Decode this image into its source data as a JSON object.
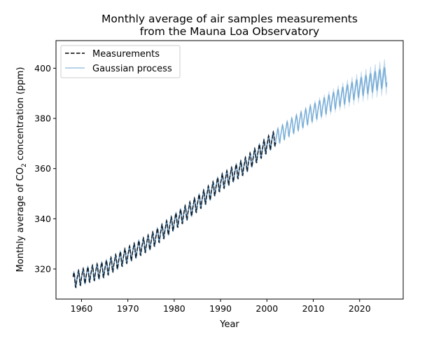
{
  "chart_data": {
    "type": "line",
    "title_line1": "Monthly average of air samples measurements",
    "title_line2": "from the Mauna Loa Observatory",
    "xlabel": "Year",
    "ylabel_prefix": "Monthly average of CO",
    "ylabel_sub": "2",
    "ylabel_suffix": " concentration (ppm)",
    "xlim": [
      1954.5,
      2029.4
    ],
    "ylim": [
      308,
      411
    ],
    "xticks": [
      "1960",
      "1970",
      "1980",
      "1990",
      "2000",
      "2010",
      "2020"
    ],
    "yticks": [
      "320",
      "340",
      "360",
      "380",
      "400"
    ],
    "grid": false,
    "legend": {
      "placement": "upper-left",
      "entries": [
        "Measurements",
        "Gaussian process"
      ]
    },
    "colors": {
      "measurements": "#000000",
      "gp_mean": "#77acd6",
      "gp_band": "#a9cbe6"
    },
    "series": [
      {
        "name": "Measurements",
        "style": "dashed",
        "x_range": [
          1958.2,
          2001.9
        ],
        "annual_mean_years": [
          1958,
          1960,
          1965,
          1970,
          1975,
          1980,
          1985,
          1990,
          1995,
          2000,
          2002
        ],
        "annual_mean_ppm": [
          315.3,
          316.9,
          320.0,
          325.7,
          331.1,
          338.7,
          346.1,
          354.4,
          360.8,
          369.5,
          372.5
        ],
        "seasonal_cycle_ppm": [
          0.0,
          0.7,
          1.4,
          2.5,
          3.0,
          2.4,
          0.8,
          -1.3,
          -3.0,
          -3.2,
          -2.0,
          -0.8
        ]
      },
      {
        "name": "Gaussian process",
        "style": "solid",
        "x_range": [
          1958.2,
          2025.9
        ],
        "mean_years": [
          1958,
          1960,
          1965,
          1970,
          1975,
          1980,
          1985,
          1990,
          1995,
          2000,
          2002,
          2005,
          2010,
          2015,
          2020,
          2026
        ],
        "mean_ppm": [
          315.3,
          316.9,
          320.0,
          325.7,
          331.1,
          338.7,
          346.1,
          354.4,
          360.8,
          369.5,
          372.5,
          376.5,
          382.5,
          387.8,
          392.5,
          397.0
        ],
        "std_years": [
          1958,
          2002,
          2010,
          2018,
          2026
        ],
        "std_ppm": [
          0.6,
          0.6,
          1.2,
          2.2,
          3.6
        ]
      }
    ]
  }
}
